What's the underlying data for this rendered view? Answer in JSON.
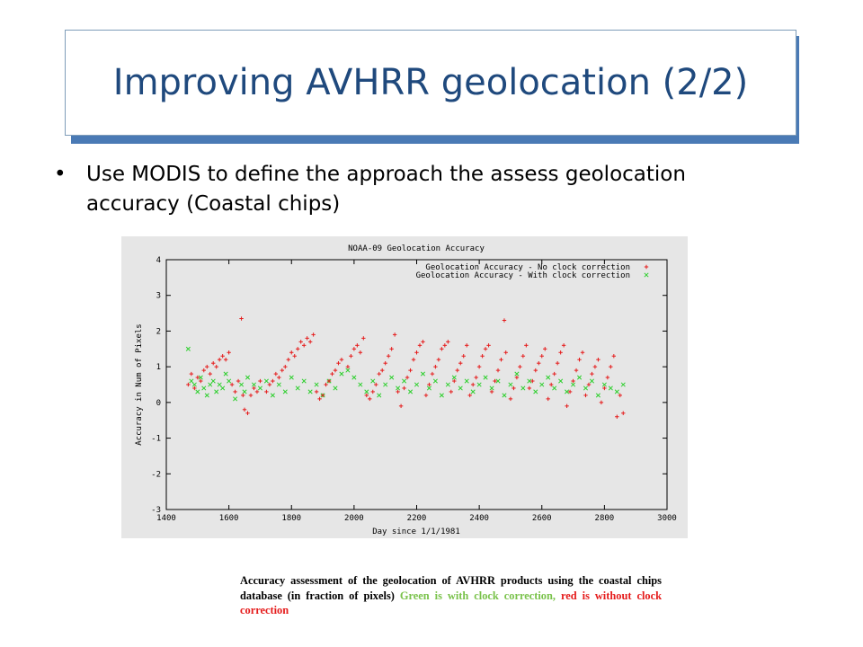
{
  "slide": {
    "title": "Improving AVHRR geolocation (2/2)",
    "bullet_char": "•",
    "bullet_text": "Use MODIS to define the approach the assess geolocation accuracy (Coastal chips)",
    "caption": {
      "part1": "Accuracy assessment of the geolocation of AVHRR products using the coastal chips database (in fraction of pixels)",
      "part2": "Green is with clock correction,",
      "part3": "red is without clock correction"
    }
  },
  "colors": {
    "title": "#1f497d",
    "no_clock": "#e51b1b",
    "with_clock": "#2ecf2e",
    "plot_bg": "#e6e6e6"
  },
  "chart_data": {
    "type": "scatter",
    "title": "NOAA-09 Geolocation Accuracy",
    "xlabel": "Day since 1/1/1981",
    "ylabel": "Accuracy in Num of Pixels",
    "xlim": [
      1400,
      3000
    ],
    "ylim": [
      -3,
      4
    ],
    "xticks": [
      1400,
      1600,
      1800,
      2000,
      2200,
      2400,
      2600,
      2800,
      3000
    ],
    "yticks": [
      -3,
      -2,
      -1,
      0,
      1,
      2,
      3,
      4
    ],
    "legend_position": "top-right",
    "series": [
      {
        "name": "Geolocation Accuracy - No clock correction",
        "color": "#e51b1b",
        "marker": "+",
        "points": [
          [
            1470,
            0.5
          ],
          [
            1480,
            0.8
          ],
          [
            1490,
            0.4
          ],
          [
            1500,
            0.7
          ],
          [
            1510,
            0.6
          ],
          [
            1520,
            0.9
          ],
          [
            1530,
            1.0
          ],
          [
            1540,
            0.8
          ],
          [
            1550,
            1.1
          ],
          [
            1560,
            1.0
          ],
          [
            1570,
            1.2
          ],
          [
            1580,
            1.3
          ],
          [
            1590,
            1.2
          ],
          [
            1600,
            1.4
          ],
          [
            1610,
            0.5
          ],
          [
            1620,
            0.3
          ],
          [
            1630,
            0.6
          ],
          [
            1640,
            2.35
          ],
          [
            1645,
            0.2
          ],
          [
            1650,
            -0.2
          ],
          [
            1660,
            -0.3
          ],
          [
            1670,
            0.2
          ],
          [
            1680,
            0.4
          ],
          [
            1690,
            0.3
          ],
          [
            1700,
            0.6
          ],
          [
            1720,
            0.3
          ],
          [
            1730,
            0.5
          ],
          [
            1740,
            0.6
          ],
          [
            1750,
            0.8
          ],
          [
            1760,
            0.7
          ],
          [
            1770,
            0.9
          ],
          [
            1780,
            1.0
          ],
          [
            1790,
            1.2
          ],
          [
            1800,
            1.4
          ],
          [
            1810,
            1.3
          ],
          [
            1820,
            1.5
          ],
          [
            1830,
            1.7
          ],
          [
            1840,
            1.6
          ],
          [
            1850,
            1.8
          ],
          [
            1860,
            1.7
          ],
          [
            1870,
            1.9
          ],
          [
            1880,
            0.3
          ],
          [
            1890,
            0.1
          ],
          [
            1900,
            0.2
          ],
          [
            1910,
            0.5
          ],
          [
            1920,
            0.6
          ],
          [
            1930,
            0.8
          ],
          [
            1940,
            0.9
          ],
          [
            1950,
            1.1
          ],
          [
            1960,
            1.2
          ],
          [
            1980,
            1.0
          ],
          [
            1990,
            1.3
          ],
          [
            2000,
            1.5
          ],
          [
            2010,
            1.6
          ],
          [
            2020,
            1.4
          ],
          [
            2030,
            1.8
          ],
          [
            2040,
            0.2
          ],
          [
            2050,
            0.1
          ],
          [
            2060,
            0.3
          ],
          [
            2070,
            0.5
          ],
          [
            2080,
            0.8
          ],
          [
            2090,
            0.9
          ],
          [
            2100,
            1.1
          ],
          [
            2110,
            1.3
          ],
          [
            2120,
            1.5
          ],
          [
            2130,
            1.9
          ],
          [
            2140,
            0.3
          ],
          [
            2150,
            -0.1
          ],
          [
            2160,
            0.4
          ],
          [
            2170,
            0.7
          ],
          [
            2180,
            0.9
          ],
          [
            2190,
            1.2
          ],
          [
            2200,
            1.4
          ],
          [
            2210,
            1.6
          ],
          [
            2220,
            1.7
          ],
          [
            2230,
            0.2
          ],
          [
            2240,
            0.5
          ],
          [
            2250,
            0.8
          ],
          [
            2260,
            1.0
          ],
          [
            2270,
            1.2
          ],
          [
            2280,
            1.5
          ],
          [
            2290,
            1.6
          ],
          [
            2300,
            1.7
          ],
          [
            2310,
            0.3
          ],
          [
            2320,
            0.6
          ],
          [
            2330,
            0.9
          ],
          [
            2340,
            1.1
          ],
          [
            2350,
            1.3
          ],
          [
            2360,
            1.6
          ],
          [
            2370,
            0.2
          ],
          [
            2380,
            0.5
          ],
          [
            2390,
            0.7
          ],
          [
            2400,
            1.0
          ],
          [
            2410,
            1.3
          ],
          [
            2420,
            1.5
          ],
          [
            2430,
            1.6
          ],
          [
            2440,
            0.3
          ],
          [
            2450,
            0.6
          ],
          [
            2460,
            0.9
          ],
          [
            2470,
            1.2
          ],
          [
            2480,
            2.3
          ],
          [
            2485,
            1.4
          ],
          [
            2500,
            0.1
          ],
          [
            2510,
            0.4
          ],
          [
            2520,
            0.7
          ],
          [
            2530,
            1.0
          ],
          [
            2540,
            1.3
          ],
          [
            2550,
            1.6
          ],
          [
            2560,
            0.4
          ],
          [
            2570,
            0.6
          ],
          [
            2580,
            0.9
          ],
          [
            2590,
            1.1
          ],
          [
            2600,
            1.3
          ],
          [
            2610,
            1.5
          ],
          [
            2620,
            0.1
          ],
          [
            2630,
            0.5
          ],
          [
            2640,
            0.8
          ],
          [
            2650,
            1.1
          ],
          [
            2660,
            1.4
          ],
          [
            2670,
            1.6
          ],
          [
            2680,
            -0.1
          ],
          [
            2690,
            0.3
          ],
          [
            2700,
            0.6
          ],
          [
            2710,
            0.9
          ],
          [
            2720,
            1.2
          ],
          [
            2730,
            1.4
          ],
          [
            2740,
            0.2
          ],
          [
            2750,
            0.5
          ],
          [
            2760,
            0.8
          ],
          [
            2770,
            1.0
          ],
          [
            2780,
            1.2
          ],
          [
            2790,
            0.0
          ],
          [
            2800,
            0.4
          ],
          [
            2810,
            0.7
          ],
          [
            2820,
            1.0
          ],
          [
            2830,
            1.3
          ],
          [
            2840,
            -0.4
          ],
          [
            2850,
            0.2
          ],
          [
            2860,
            -0.3
          ]
        ]
      },
      {
        "name": "Geolocation Accuracy - With clock correction",
        "color": "#2ecf2e",
        "marker": "x",
        "points": [
          [
            1470,
            1.5
          ],
          [
            1480,
            0.6
          ],
          [
            1490,
            0.5
          ],
          [
            1500,
            0.3
          ],
          [
            1510,
            0.7
          ],
          [
            1520,
            0.4
          ],
          [
            1530,
            0.2
          ],
          [
            1540,
            0.5
          ],
          [
            1550,
            0.6
          ],
          [
            1560,
            0.3
          ],
          [
            1570,
            0.5
          ],
          [
            1580,
            0.4
          ],
          [
            1590,
            0.8
          ],
          [
            1600,
            0.6
          ],
          [
            1620,
            0.1
          ],
          [
            1640,
            0.5
          ],
          [
            1650,
            0.3
          ],
          [
            1660,
            0.7
          ],
          [
            1680,
            0.5
          ],
          [
            1700,
            0.4
          ],
          [
            1720,
            0.6
          ],
          [
            1740,
            0.2
          ],
          [
            1760,
            0.5
          ],
          [
            1780,
            0.3
          ],
          [
            1800,
            0.7
          ],
          [
            1820,
            0.4
          ],
          [
            1840,
            0.6
          ],
          [
            1860,
            0.3
          ],
          [
            1880,
            0.5
          ],
          [
            1900,
            0.2
          ],
          [
            1920,
            0.6
          ],
          [
            1940,
            0.4
          ],
          [
            1960,
            0.8
          ],
          [
            1980,
            0.9
          ],
          [
            2000,
            0.7
          ],
          [
            2020,
            0.5
          ],
          [
            2040,
            0.3
          ],
          [
            2060,
            0.6
          ],
          [
            2080,
            0.2
          ],
          [
            2100,
            0.5
          ],
          [
            2120,
            0.7
          ],
          [
            2140,
            0.4
          ],
          [
            2160,
            0.6
          ],
          [
            2180,
            0.3
          ],
          [
            2200,
            0.5
          ],
          [
            2220,
            0.8
          ],
          [
            2240,
            0.4
          ],
          [
            2260,
            0.6
          ],
          [
            2280,
            0.2
          ],
          [
            2300,
            0.5
          ],
          [
            2320,
            0.7
          ],
          [
            2340,
            0.4
          ],
          [
            2360,
            0.6
          ],
          [
            2380,
            0.3
          ],
          [
            2400,
            0.5
          ],
          [
            2420,
            0.7
          ],
          [
            2440,
            0.4
          ],
          [
            2460,
            0.6
          ],
          [
            2480,
            0.2
          ],
          [
            2500,
            0.5
          ],
          [
            2520,
            0.8
          ],
          [
            2540,
            0.4
          ],
          [
            2560,
            0.6
          ],
          [
            2580,
            0.3
          ],
          [
            2600,
            0.5
          ],
          [
            2620,
            0.7
          ],
          [
            2640,
            0.4
          ],
          [
            2660,
            0.6
          ],
          [
            2680,
            0.3
          ],
          [
            2700,
            0.5
          ],
          [
            2720,
            0.7
          ],
          [
            2740,
            0.4
          ],
          [
            2760,
            0.6
          ],
          [
            2780,
            0.2
          ],
          [
            2800,
            0.5
          ],
          [
            2820,
            0.4
          ],
          [
            2840,
            0.3
          ],
          [
            2860,
            0.5
          ]
        ]
      }
    ]
  }
}
